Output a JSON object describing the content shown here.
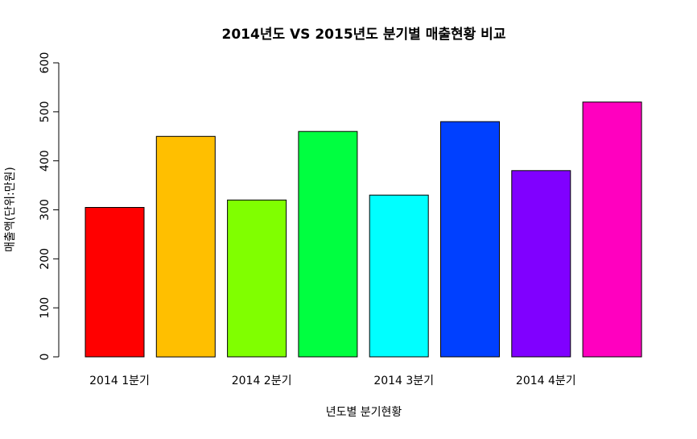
{
  "chart_data": {
    "type": "bar",
    "title": "2014년도 VS 2015년도 분기별 매출현황 비교",
    "xlabel": "년도별 분기현황",
    "ylabel": "매출액(단위:만원)",
    "ylim": [
      0,
      600
    ],
    "yticks": [
      0,
      100,
      200,
      300,
      400,
      500,
      600
    ],
    "grid": false,
    "bars": [
      {
        "value": 305,
        "color": "#FF0000"
      },
      {
        "value": 450,
        "color": "#FFBF00"
      },
      {
        "value": 320,
        "color": "#80FF00"
      },
      {
        "value": 460,
        "color": "#00FF40"
      },
      {
        "value": 330,
        "color": "#00FFFF"
      },
      {
        "value": 480,
        "color": "#0040FF"
      },
      {
        "value": 380,
        "color": "#8000FF"
      },
      {
        "value": 520,
        "color": "#FF00BF"
      }
    ],
    "category_labels": [
      {
        "bar_index": 0,
        "label": "2014 1분기"
      },
      {
        "bar_index": 2,
        "label": "2014 2분기"
      },
      {
        "bar_index": 4,
        "label": "2014 3분기"
      },
      {
        "bar_index": 6,
        "label": "2014 4분기"
      }
    ]
  }
}
